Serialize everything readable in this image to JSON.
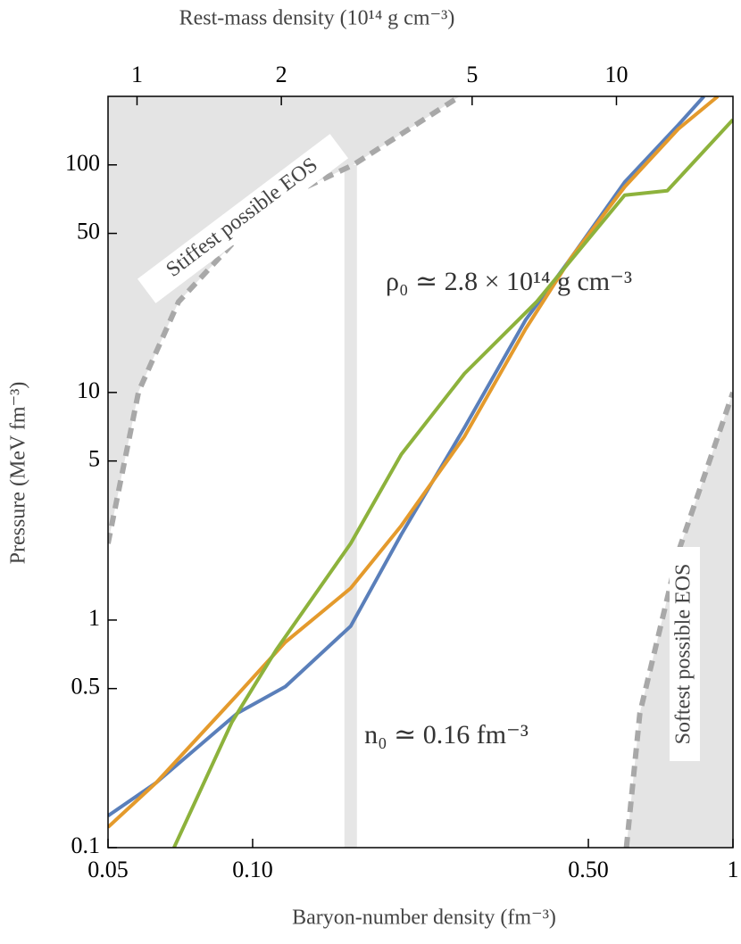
{
  "chart_data": {
    "type": "line",
    "xlabel": "Baryon-number density (fm⁻³)",
    "ylabel": "Pressure (MeV fm⁻³)",
    "x2label": "Rest-mass density (10¹⁴ g cm⁻³)",
    "xscale": "log",
    "yscale": "log",
    "xlim": [
      0.05,
      1
    ],
    "ylim": [
      0.1,
      200
    ],
    "x2lim": [
      0.87,
      17.5
    ],
    "xticks": [
      0.05,
      {
        "value": 0.1,
        "label": "0.10"
      },
      {
        "value": 0.5,
        "label": "0.50"
      },
      1
    ],
    "yticks": [
      0.1,
      0.5,
      1,
      5,
      10,
      50,
      100
    ],
    "x2ticks": [
      1,
      2,
      5,
      10
    ],
    "series": [
      {
        "color": "#5a7fba",
        "x": [
          0.05,
          0.063,
          0.093,
          0.117,
          0.16,
          0.204,
          0.276,
          0.37,
          0.46,
          0.595,
          0.77,
          0.87
        ],
        "values": [
          0.138,
          0.193,
          0.39,
          0.51,
          0.94,
          2.38,
          7.0,
          20.8,
          39,
          84,
          150,
          200
        ]
      },
      {
        "color": "#e49a2c",
        "x": [
          0.05,
          0.063,
          0.093,
          0.117,
          0.16,
          0.204,
          0.276,
          0.37,
          0.46,
          0.595,
          0.77,
          0.93
        ],
        "values": [
          0.123,
          0.193,
          0.47,
          0.8,
          1.38,
          2.6,
          6.4,
          19,
          39,
          80,
          144,
          200
        ]
      },
      {
        "color": "#8db23c",
        "x": [
          0.0686,
          0.0906,
          0.112,
          0.16,
          0.204,
          0.276,
          0.39,
          0.595,
          0.73,
          1
        ],
        "values": [
          0.1,
          0.357,
          0.74,
          2.17,
          5.35,
          12.1,
          25,
          73.6,
          77,
          158
        ]
      }
    ],
    "bounds": [
      {
        "label": "Stiffest possible EOS",
        "fill_corner": "top-left",
        "x": [
          0.05,
          0.0579,
          0.0701,
          0.108,
          0.162,
          0.27
        ],
        "values": [
          2.17,
          10.1,
          25,
          67,
          100,
          200
        ]
      },
      {
        "label": "Softest possible EOS",
        "fill_corner": "bottom-right",
        "x": [
          0.6,
          0.64,
          0.77,
          1
        ],
        "values": [
          0.1,
          0.39,
          2,
          10
        ]
      }
    ],
    "band": {
      "x": 0.16,
      "top": 100
    },
    "annotations": [
      "ρ₀ ≃ 2.8 × 10¹⁴ g cm⁻³",
      "n₀ ≃ 0.16 fm⁻³"
    ]
  }
}
